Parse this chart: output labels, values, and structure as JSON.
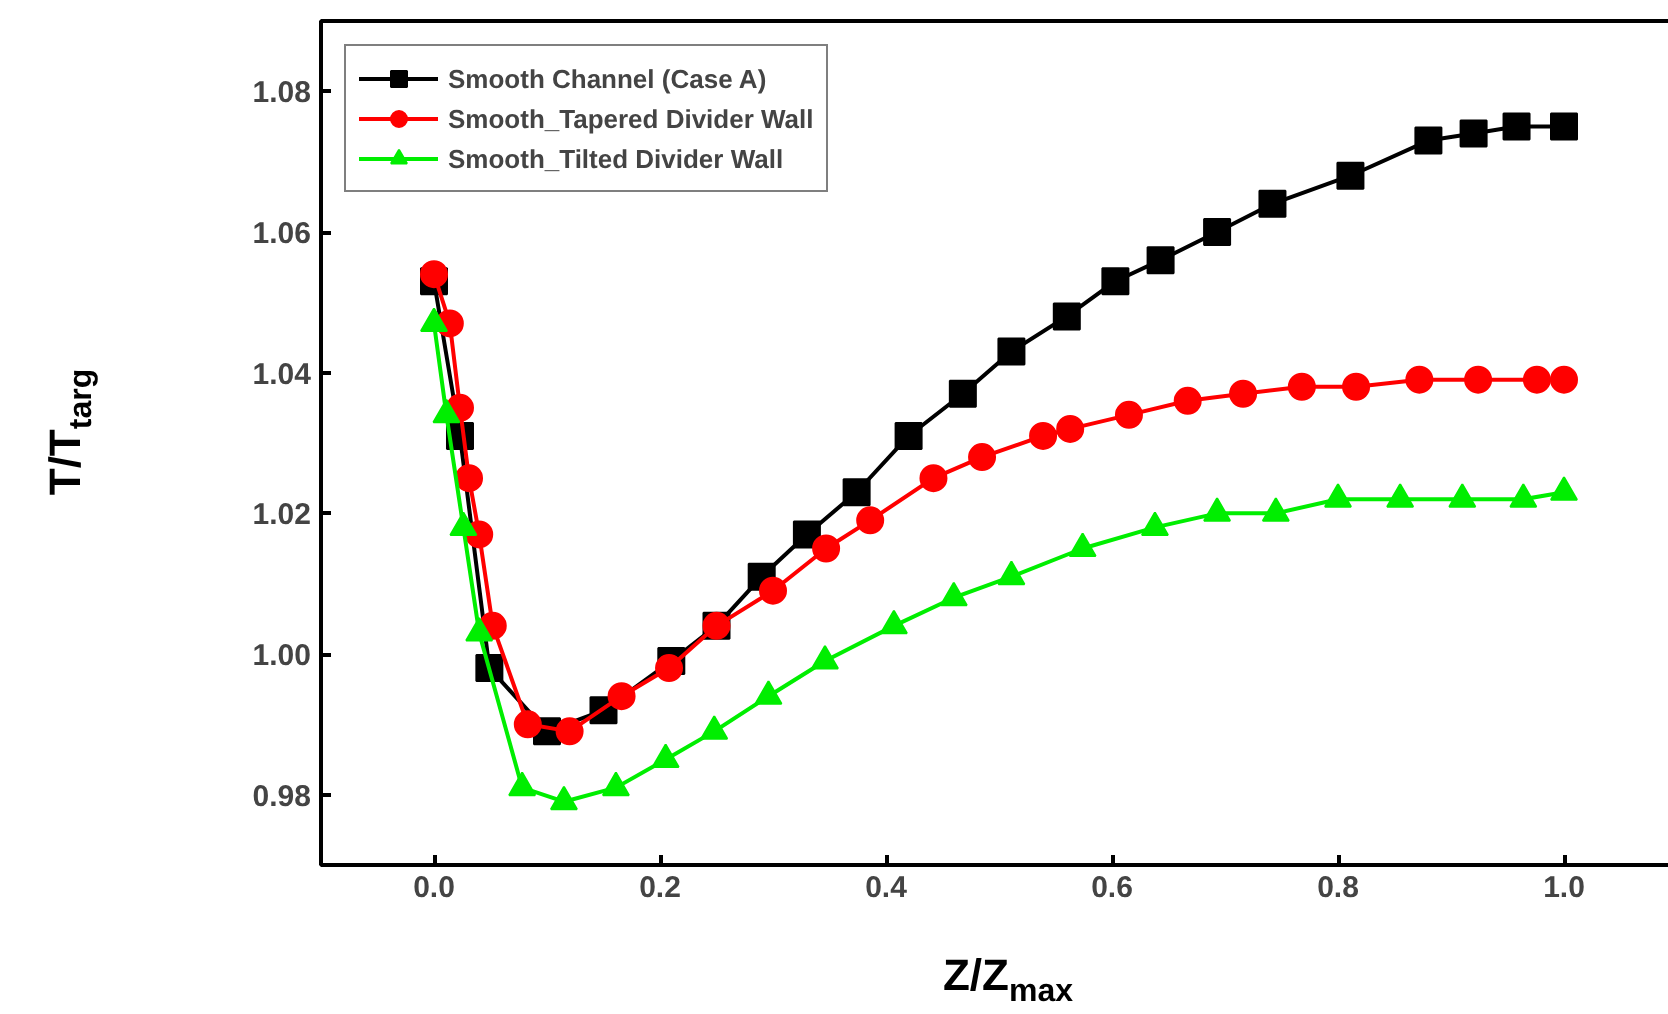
{
  "chart_data": {
    "type": "line",
    "xlabel": "Z/Z$_{max}$",
    "ylabel": "T/T$_{targ}$",
    "xlim": [
      -0.1,
      1.1
    ],
    "ylim": [
      0.97,
      1.09
    ],
    "xticks": [
      {
        "value": 0.0,
        "label": "0.0"
      },
      0.2,
      0.4,
      0.6,
      0.8,
      {
        "value": 1.0,
        "label": "1.0"
      }
    ],
    "yticks": [
      0.98,
      {
        "value": 1.0,
        "label": "1.00"
      },
      1.02,
      1.04,
      1.06,
      1.08
    ],
    "grid": false,
    "legend": "top left",
    "line_style": "solid",
    "series": [
      {
        "name": "Smooth Channel (Case A)",
        "color": "#000000",
        "marker": "square",
        "x": [
          0,
          0.023,
          0.049,
          0.1,
          0.15,
          0.21,
          0.25,
          0.29,
          0.33,
          0.374,
          0.42,
          0.468,
          0.511,
          0.56,
          0.603,
          0.643,
          0.693,
          0.742,
          0.811,
          0.88,
          0.92,
          0.958,
          1.0
        ],
        "values": [
          1.053,
          1.031,
          0.998,
          0.989,
          0.992,
          0.999,
          1.004,
          1.011,
          1.017,
          1.023,
          1.031,
          1.037,
          1.043,
          1.048,
          1.053,
          1.056,
          1.06,
          1.064,
          1.068,
          1.073,
          1.074,
          1.075,
          1.075
        ]
      },
      {
        "name": "Smooth_Tapered Divider Wall",
        "color": "#ff0000",
        "marker": "circle",
        "x": [
          0,
          0.014,
          0.023,
          0.031,
          0.04,
          0.052,
          0.083,
          0.12,
          0.166,
          0.208,
          0.25,
          0.3,
          0.347,
          0.386,
          0.442,
          0.485,
          0.539,
          0.563,
          0.615,
          0.667,
          0.716,
          0.768,
          0.816,
          0.872,
          0.924,
          0.976,
          1.0
        ],
        "values": [
          1.054,
          1.047,
          1.035,
          1.025,
          1.017,
          1.004,
          0.99,
          0.989,
          0.994,
          0.998,
          1.004,
          1.009,
          1.015,
          1.019,
          1.025,
          1.028,
          1.031,
          1.032,
          1.034,
          1.036,
          1.037,
          1.038,
          1.038,
          1.039,
          1.039,
          1.039,
          1.039
        ]
      },
      {
        "name": "Smooth_Tilted Divider Wall",
        "color": "#00ee00",
        "marker": "triangle",
        "x": [
          0,
          0.011,
          0.026,
          0.04,
          0.078,
          0.115,
          0.161,
          0.205,
          0.248,
          0.296,
          0.346,
          0.407,
          0.46,
          0.511,
          0.574,
          0.638,
          0.693,
          0.745,
          0.8,
          0.855,
          0.91,
          0.964,
          1.0
        ],
        "values": [
          1.047,
          1.034,
          1.018,
          1.003,
          0.981,
          0.979,
          0.981,
          0.985,
          0.989,
          0.994,
          0.999,
          1.004,
          1.008,
          1.011,
          1.015,
          1.018,
          1.02,
          1.02,
          1.022,
          1.022,
          1.022,
          1.022,
          1.023
        ]
      }
    ]
  }
}
